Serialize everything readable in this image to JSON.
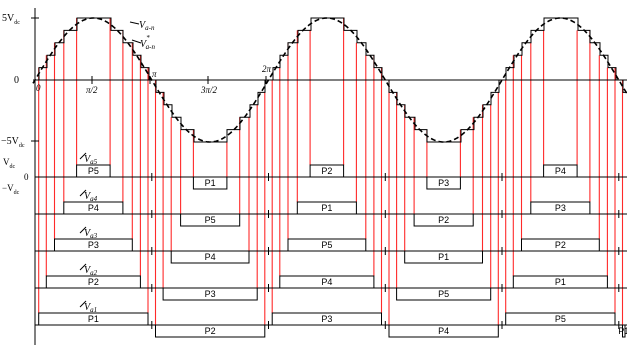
{
  "top_axis": {
    "y_ticks": [
      "5V",
      "0",
      "−5V"
    ],
    "y_tick_subscript": "dc",
    "x_ticks": [
      "0",
      "π/2",
      "π",
      "3π/2",
      "2π"
    ]
  },
  "curve_labels": {
    "v_ref": "V",
    "v_ref_sub": "a-n",
    "v_out": "V",
    "v_out_sub": "a-n",
    "v_out_sup": "*"
  },
  "level_axis": {
    "label_vdc": "V",
    "label_zero": "0",
    "label_neg": "−V",
    "sub": "dc"
  },
  "rows": [
    {
      "label": "V",
      "sub": "a5",
      "pulses": [
        "P5",
        "P1",
        "P2",
        "P3",
        "P4"
      ]
    },
    {
      "label": "V",
      "sub": "a4",
      "pulses": [
        "P4",
        "P5",
        "P1",
        "P2",
        "P3"
      ]
    },
    {
      "label": "V",
      "sub": "a3",
      "pulses": [
        "P3",
        "P4",
        "P5",
        "P1",
        "P2"
      ]
    },
    {
      "label": "V",
      "sub": "a2",
      "pulses": [
        "P2",
        "P3",
        "P4",
        "P5",
        "P1"
      ]
    },
    {
      "label": "V",
      "sub": "a1",
      "pulses": [
        "P1",
        "P2",
        "P3",
        "P4",
        "P5"
      ]
    }
  ]
}
